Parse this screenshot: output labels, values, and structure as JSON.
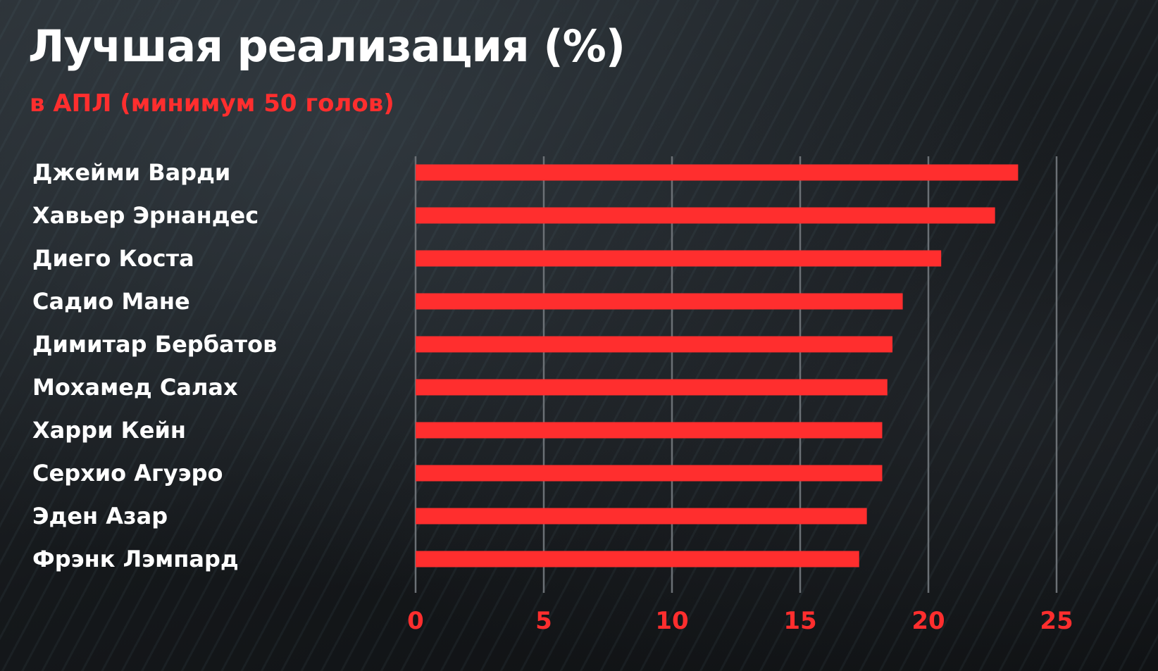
{
  "header": {
    "title": "Лучшая реализация (%)",
    "subtitle": "в АПЛ (минимум 50 голов)"
  },
  "colors": {
    "bar": "#ff2e2e",
    "tick_label": "#ff2e2e",
    "label": "#ffffff",
    "gridline": "#6b7075"
  },
  "chart_data": {
    "type": "bar",
    "orientation": "horizontal",
    "title": "Лучшая реализация (%)",
    "subtitle": "в АПЛ (минимум 50 голов)",
    "categories": [
      "Джейми Варди",
      "Хавьер Эрнандес",
      "Диего Коста",
      "Садио Мане",
      "Димитар Бербатов",
      "Мохамед Салах",
      "Харри Кейн",
      "Серхио Агуэро",
      "Эден Азар",
      "Фрэнк Лэмпард"
    ],
    "values": [
      23.5,
      22.6,
      20.5,
      19.0,
      18.6,
      18.4,
      18.2,
      18.2,
      17.6,
      17.3
    ],
    "xlim": [
      0,
      25
    ],
    "xticks": [
      0,
      5,
      10,
      15,
      20,
      25
    ],
    "xlabel": "",
    "ylabel": "",
    "grid": true,
    "legend": "none"
  }
}
